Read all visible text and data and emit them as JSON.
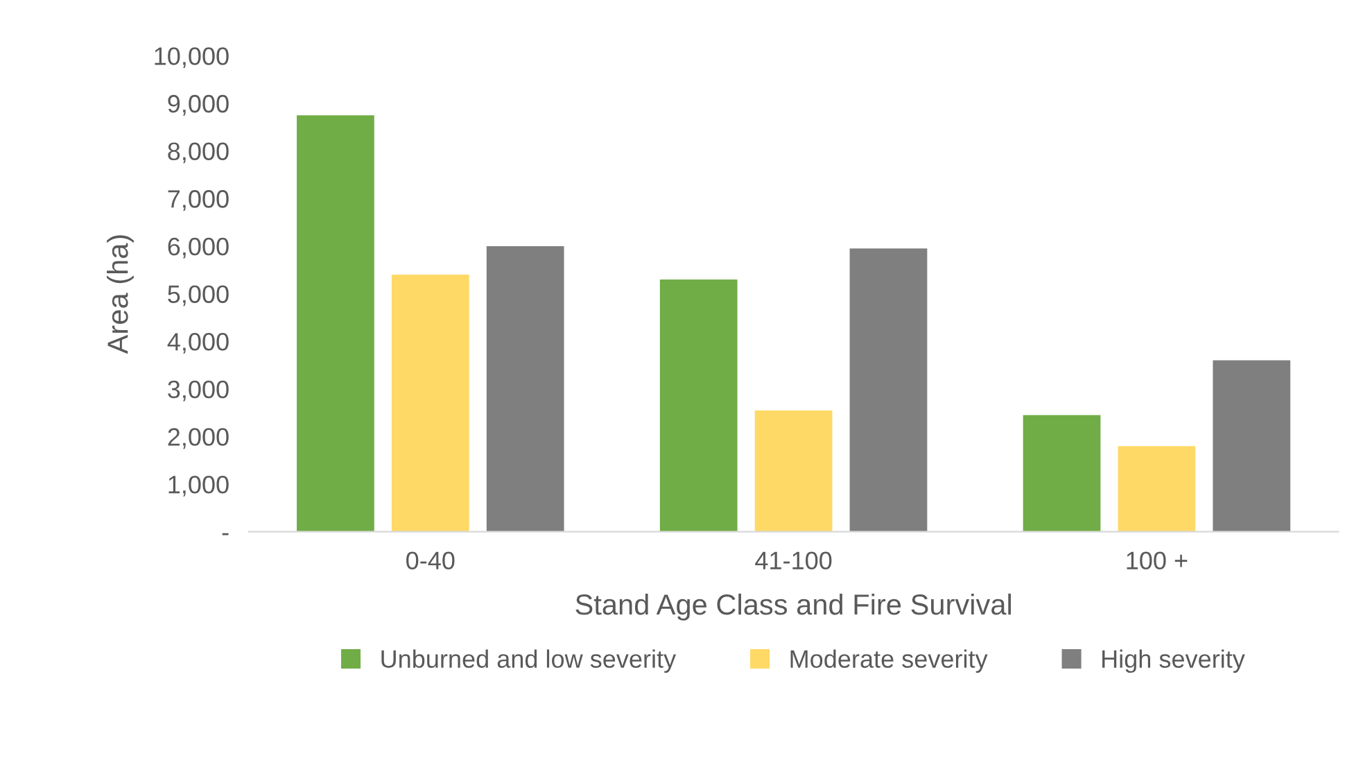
{
  "chart_data": {
    "type": "bar",
    "xlabel": "Stand Age Class and Fire Survival",
    "ylabel": "Area (ha)",
    "categories": [
      "0-40",
      "41-100",
      "100 +"
    ],
    "series": [
      {
        "name": "Unburned and low severity",
        "color": "#70ad47",
        "values": [
          8750,
          5300,
          2450
        ]
      },
      {
        "name": "Moderate severity",
        "color": "#ffd966",
        "values": [
          5400,
          2550,
          1800
        ]
      },
      {
        "name": "High severity",
        "color": "#7f7f7f",
        "values": [
          6000,
          5950,
          3600
        ]
      }
    ],
    "ylim": [
      0,
      10000
    ],
    "yticks": [
      {
        "value": 0,
        "label": "-"
      },
      {
        "value": 1000,
        "label": "1,000"
      },
      {
        "value": 2000,
        "label": "2,000"
      },
      {
        "value": 3000,
        "label": "3,000"
      },
      {
        "value": 4000,
        "label": "4,000"
      },
      {
        "value": 5000,
        "label": "5,000"
      },
      {
        "value": 6000,
        "label": "6,000"
      },
      {
        "value": 7000,
        "label": "7,000"
      },
      {
        "value": 8000,
        "label": "8,000"
      },
      {
        "value": 9000,
        "label": "9,000"
      },
      {
        "value": 10000,
        "label": "10,000"
      }
    ],
    "grid": false,
    "legend": "bottom"
  }
}
